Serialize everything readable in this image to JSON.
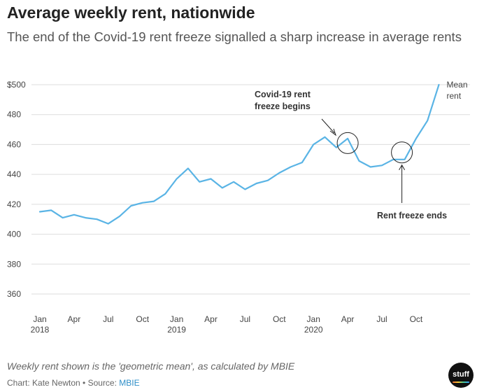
{
  "title": "Average weekly rent, nationwide",
  "subtitle": "The end of the Covid-19 rent freeze signalled a sharp increase in average rents",
  "footnote": "Weekly rent shown is the 'geometric mean', as calculated by MBIE",
  "credit_prefix": "Chart: Kate Newton • Source: ",
  "credit_link": "MBIE",
  "logo_text": "stuff",
  "colors": {
    "line": "#5ab4e5",
    "grid": "#dddddd",
    "text": "#444444"
  },
  "chart_data": {
    "type": "line",
    "title": "Average weekly rent, nationwide",
    "xlabel": "",
    "ylabel": "",
    "ylim": [
      360,
      500
    ],
    "yticks": [
      360,
      380,
      400,
      420,
      440,
      460,
      480,
      500
    ],
    "ytick_labels": [
      "360",
      "380",
      "400",
      "420",
      "440",
      "460",
      "480",
      "$500"
    ],
    "grid": true,
    "x_range": [
      0,
      34
    ],
    "xticks": [
      {
        "index": 0,
        "label": "Jan",
        "year": "2018"
      },
      {
        "index": 3,
        "label": "Apr",
        "year": ""
      },
      {
        "index": 6,
        "label": "Jul",
        "year": ""
      },
      {
        "index": 9,
        "label": "Oct",
        "year": ""
      },
      {
        "index": 12,
        "label": "Jan",
        "year": "2019"
      },
      {
        "index": 15,
        "label": "Apr",
        "year": ""
      },
      {
        "index": 18,
        "label": "Jul",
        "year": ""
      },
      {
        "index": 21,
        "label": "Oct",
        "year": ""
      },
      {
        "index": 24,
        "label": "Jan",
        "year": "2020"
      },
      {
        "index": 27,
        "label": "Apr",
        "year": ""
      },
      {
        "index": 30,
        "label": "Jul",
        "year": ""
      },
      {
        "index": 33,
        "label": "Oct",
        "year": ""
      }
    ],
    "series": [
      {
        "name": "Mean rent",
        "label": [
          "Mean",
          "rent"
        ],
        "x": [
          0,
          1,
          2,
          3,
          4,
          5,
          6,
          7,
          8,
          9,
          10,
          11,
          12,
          13,
          14,
          15,
          16,
          17,
          18,
          19,
          20,
          21,
          22,
          23,
          24,
          25,
          26,
          27,
          28,
          29,
          30,
          31,
          32,
          33,
          34,
          35
        ],
        "values": [
          415,
          416,
          411,
          413,
          411,
          410,
          407,
          412,
          419,
          421,
          422,
          427,
          437,
          444,
          435,
          437,
          431,
          435,
          430,
          434,
          436,
          441,
          445,
          448,
          460,
          465,
          458,
          464,
          449,
          445,
          446,
          450,
          450,
          464,
          476,
          502
        ]
      }
    ],
    "annotations": [
      {
        "text": [
          "Covid-19 rent",
          "freeze begins"
        ],
        "x": 27,
        "y": 460
      },
      {
        "text": [
          "Rent freeze ends"
        ],
        "x": 32,
        "y": 451
      }
    ]
  }
}
